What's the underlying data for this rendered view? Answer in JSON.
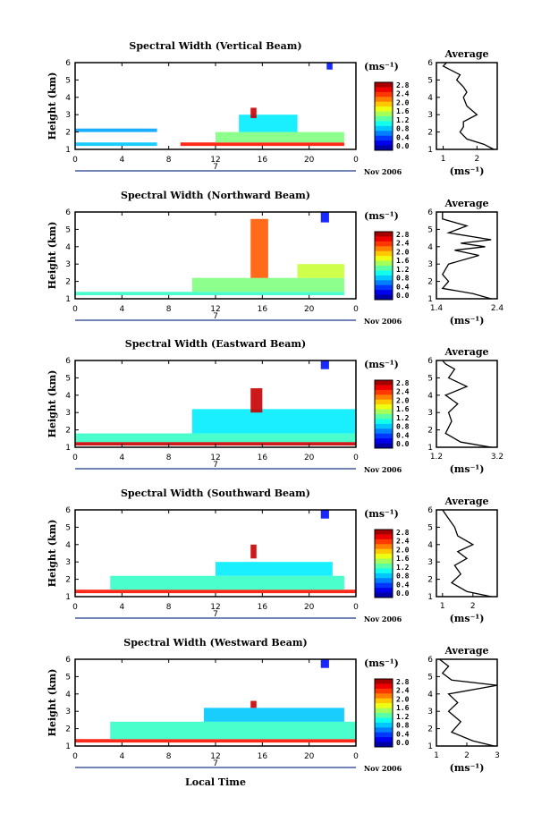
{
  "figure": {
    "xlabel": "Local Time",
    "colorbar_unit": "(ms⁻¹)",
    "average_unit": "(ms⁻¹)",
    "average_title": "Average",
    "date_label": "Nov 2006",
    "day_label": "7",
    "colorbar_ticks": [
      "2.8",
      "2.4",
      "2.0",
      "1.6",
      "1.2",
      "0.8",
      "0.4",
      "0.0"
    ]
  },
  "chart_data": [
    {
      "type": "heatmap",
      "title": "Spectral Width (Vertical Beam)",
      "ylabel": "Height (km)",
      "xticks": [
        "0",
        "4",
        "8",
        "12",
        "16",
        "20",
        "0"
      ],
      "xlim": [
        0,
        24
      ],
      "ylim": [
        1,
        6
      ],
      "yticks": [
        "1",
        "2",
        "3",
        "4",
        "5",
        "6"
      ],
      "clim": [
        0.0,
        2.8
      ],
      "cells": [
        {
          "t0": 0,
          "t1": 7,
          "h0": 1.2,
          "h1": 1.4,
          "v": 0.9
        },
        {
          "t0": 0,
          "t1": 7,
          "h0": 2.0,
          "h1": 2.2,
          "v": 0.8
        },
        {
          "t0": 9,
          "t1": 23,
          "h0": 1.2,
          "h1": 1.4,
          "v": 2.4
        },
        {
          "t0": 12,
          "t1": 23,
          "h0": 1.4,
          "h1": 2.0,
          "v": 1.4
        },
        {
          "t0": 14,
          "t1": 19,
          "h0": 2.0,
          "h1": 3.0,
          "v": 1.0
        },
        {
          "t0": 15,
          "t1": 15.5,
          "h0": 2.8,
          "h1": 3.4,
          "v": 2.6
        },
        {
          "t0": 21.5,
          "t1": 22,
          "h0": 5.6,
          "h1": 6.0,
          "v": 0.4
        }
      ],
      "average": {
        "xlim": [
          0.8,
          2.6
        ],
        "xticks": [
          "1",
          "2"
        ],
        "x": [
          2.5,
          2.2,
          1.7,
          1.5,
          1.6,
          1.6,
          2.0,
          1.7,
          1.6,
          1.7,
          1.6,
          1.4,
          1.5,
          1.2,
          1.0,
          1.1
        ],
        "h": [
          1.0,
          1.3,
          1.6,
          2.0,
          2.3,
          2.6,
          3.0,
          3.5,
          4.0,
          4.3,
          4.6,
          5.0,
          5.3,
          5.6,
          5.8,
          6.0
        ]
      }
    },
    {
      "type": "heatmap",
      "title": "Spectral Width (Northward Beam)",
      "ylabel": "Height (km)",
      "xticks": [
        "0",
        "4",
        "8",
        "12",
        "16",
        "20",
        "0"
      ],
      "xlim": [
        0,
        24
      ],
      "ylim": [
        1,
        6
      ],
      "yticks": [
        "1",
        "2",
        "3",
        "4",
        "5",
        "6"
      ],
      "clim": [
        0.0,
        2.8
      ],
      "cells": [
        {
          "t0": 0,
          "t1": 23,
          "h0": 1.2,
          "h1": 1.4,
          "v": 1.2
        },
        {
          "t0": 10,
          "t1": 23,
          "h0": 1.4,
          "h1": 2.2,
          "v": 1.4
        },
        {
          "t0": 15,
          "t1": 16.5,
          "h0": 2.2,
          "h1": 5.6,
          "v": 2.2
        },
        {
          "t0": 19,
          "t1": 23,
          "h0": 2.2,
          "h1": 3.0,
          "v": 1.6
        },
        {
          "t0": 21,
          "t1": 21.7,
          "h0": 5.4,
          "h1": 6.0,
          "v": 0.4
        }
      ],
      "average": {
        "xlim": [
          1.4,
          2.4
        ],
        "xticks": [
          "1.4",
          "2.4"
        ],
        "x": [
          2.3,
          2.0,
          1.5,
          1.6,
          1.5,
          1.6,
          2.1,
          1.7,
          2.2,
          1.8,
          2.3,
          1.6,
          1.9,
          1.5,
          1.5
        ],
        "h": [
          1.0,
          1.3,
          1.6,
          2.0,
          2.4,
          3.0,
          3.5,
          3.8,
          4.0,
          4.2,
          4.4,
          4.8,
          5.2,
          5.6,
          6.0
        ]
      }
    },
    {
      "type": "heatmap",
      "title": "Spectral Width (Eastward Beam)",
      "ylabel": "Height (km)",
      "xticks": [
        "0",
        "4",
        "8",
        "12",
        "16",
        "20",
        "0"
      ],
      "xlim": [
        0,
        24
      ],
      "ylim": [
        1,
        6
      ],
      "yticks": [
        "1",
        "2",
        "3",
        "4",
        "5",
        "6"
      ],
      "clim": [
        0.0,
        2.8
      ],
      "cells": [
        {
          "t0": 0,
          "t1": 24,
          "h0": 1.1,
          "h1": 1.3,
          "v": 2.6
        },
        {
          "t0": 0,
          "t1": 24,
          "h0": 1.3,
          "h1": 1.8,
          "v": 1.2
        },
        {
          "t0": 10,
          "t1": 24,
          "h0": 1.8,
          "h1": 3.2,
          "v": 1.0
        },
        {
          "t0": 15,
          "t1": 16,
          "h0": 3.0,
          "h1": 4.4,
          "v": 2.6
        },
        {
          "t0": 21,
          "t1": 21.7,
          "h0": 5.5,
          "h1": 6.0,
          "v": 0.4
        }
      ],
      "average": {
        "xlim": [
          1.2,
          3.2
        ],
        "xticks": [
          "1.2",
          "3.2"
        ],
        "x": [
          3.0,
          2.0,
          1.5,
          1.7,
          1.6,
          1.9,
          1.5,
          2.2,
          1.6,
          1.8,
          1.5,
          1.4
        ],
        "h": [
          1.0,
          1.3,
          1.8,
          2.5,
          3.0,
          3.5,
          4.0,
          4.5,
          5.0,
          5.5,
          5.8,
          6.0
        ]
      }
    },
    {
      "type": "heatmap",
      "title": "Spectral Width (Southward Beam)",
      "ylabel": "Height (km)",
      "xticks": [
        "0",
        "4",
        "8",
        "12",
        "16",
        "20",
        "0"
      ],
      "xlim": [
        0,
        24
      ],
      "ylim": [
        1,
        6
      ],
      "yticks": [
        "1",
        "2",
        "3",
        "4",
        "5",
        "6"
      ],
      "clim": [
        0.0,
        2.8
      ],
      "cells": [
        {
          "t0": 0,
          "t1": 24,
          "h0": 1.2,
          "h1": 1.4,
          "v": 2.4
        },
        {
          "t0": 3,
          "t1": 23,
          "h0": 1.4,
          "h1": 2.2,
          "v": 1.2
        },
        {
          "t0": 12,
          "t1": 22,
          "h0": 2.2,
          "h1": 3.0,
          "v": 1.0
        },
        {
          "t0": 15,
          "t1": 15.5,
          "h0": 3.2,
          "h1": 4.0,
          "v": 2.6
        },
        {
          "t0": 21,
          "t1": 21.7,
          "h0": 5.5,
          "h1": 6.0,
          "v": 0.4
        }
      ],
      "average": {
        "xlim": [
          0.8,
          2.8
        ],
        "xticks": [
          "1",
          "2"
        ],
        "x": [
          2.6,
          1.8,
          1.3,
          1.6,
          1.4,
          1.8,
          1.5,
          2.0,
          1.5,
          1.4,
          1.2,
          1.0
        ],
        "h": [
          1.0,
          1.3,
          1.8,
          2.3,
          2.8,
          3.2,
          3.6,
          4.0,
          4.5,
          5.0,
          5.5,
          6.0
        ]
      }
    },
    {
      "type": "heatmap",
      "title": "Spectral Width (Westward Beam)",
      "ylabel": "Height (km)",
      "xticks": [
        "0",
        "4",
        "8",
        "12",
        "16",
        "20",
        "0"
      ],
      "xlim": [
        0,
        24
      ],
      "ylim": [
        1,
        6
      ],
      "yticks": [
        "1",
        "2",
        "3",
        "4",
        "5",
        "6"
      ],
      "clim": [
        0.0,
        2.8
      ],
      "cells": [
        {
          "t0": 0,
          "t1": 24,
          "h0": 1.2,
          "h1": 1.4,
          "v": 2.4
        },
        {
          "t0": 3,
          "t1": 24,
          "h0": 1.4,
          "h1": 2.4,
          "v": 1.2
        },
        {
          "t0": 11,
          "t1": 23,
          "h0": 2.4,
          "h1": 3.2,
          "v": 0.9
        },
        {
          "t0": 15,
          "t1": 15.5,
          "h0": 3.2,
          "h1": 3.6,
          "v": 2.6
        },
        {
          "t0": 21,
          "t1": 21.7,
          "h0": 5.5,
          "h1": 6.0,
          "v": 0.4
        }
      ],
      "average": {
        "xlim": [
          1,
          3
        ],
        "xticks": [
          "1",
          "2",
          "3"
        ],
        "x": [
          2.9,
          2.2,
          1.5,
          1.8,
          1.4,
          1.7,
          1.4,
          3.0,
          1.5,
          1.2,
          1.4,
          1.1
        ],
        "h": [
          1.0,
          1.3,
          1.8,
          2.4,
          3.0,
          3.5,
          4.0,
          4.5,
          4.8,
          5.2,
          5.6,
          6.0
        ]
      }
    }
  ]
}
